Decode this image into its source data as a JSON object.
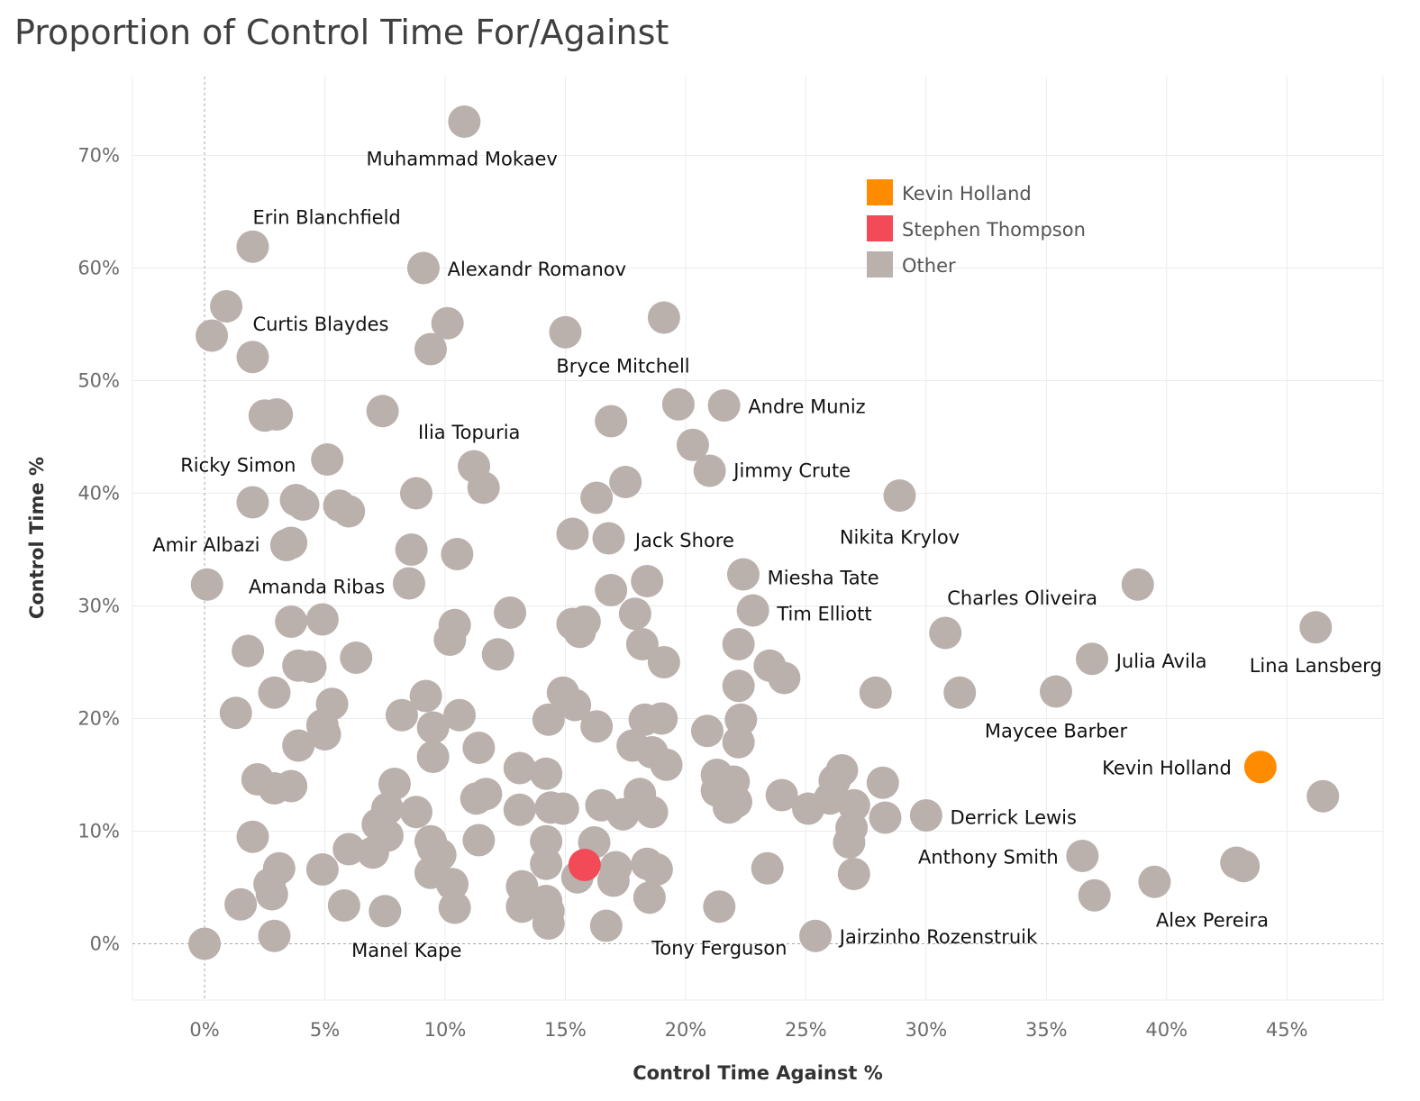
{
  "chart_data": {
    "type": "scatter",
    "title": "Proportion of Control Time For/Against",
    "xlabel": "Control Time Against %",
    "ylabel": "Control Time %",
    "xlim": [
      -3,
      49
    ],
    "ylim": [
      -5,
      77
    ],
    "x_ticks": [
      0,
      5,
      10,
      15,
      20,
      25,
      30,
      35,
      40,
      45
    ],
    "y_ticks": [
      0,
      10,
      20,
      30,
      40,
      50,
      60,
      70
    ],
    "tick_suffix": "%",
    "grid": true,
    "legend_position": "top-right",
    "colors": {
      "Kevin Holland": "#ff8c00",
      "Stephen Thompson": "#f24a57",
      "Other": "#bab0ac"
    },
    "series": [
      {
        "name": "Kevin Holland",
        "color": "#ff8c00",
        "points": [
          {
            "x": 43.9,
            "y": 15.7
          }
        ]
      },
      {
        "name": "Stephen Thompson",
        "color": "#f24a57",
        "points": [
          {
            "x": 15.8,
            "y": 7.0
          }
        ]
      },
      {
        "name": "Other",
        "color": "#bab0ac",
        "points": [
          {
            "x": 10.8,
            "y": 73.0
          },
          {
            "x": 2.0,
            "y": 61.9
          },
          {
            "x": 9.1,
            "y": 60.0
          },
          {
            "x": 0.9,
            "y": 56.6
          },
          {
            "x": 0.3,
            "y": 54.0
          },
          {
            "x": 2.0,
            "y": 52.1
          },
          {
            "x": 10.1,
            "y": 55.1
          },
          {
            "x": 9.4,
            "y": 52.8
          },
          {
            "x": 15.0,
            "y": 54.3
          },
          {
            "x": 19.1,
            "y": 55.6
          },
          {
            "x": 2.5,
            "y": 46.9
          },
          {
            "x": 3.0,
            "y": 47.0
          },
          {
            "x": 7.4,
            "y": 47.3
          },
          {
            "x": 19.7,
            "y": 47.9
          },
          {
            "x": 21.6,
            "y": 47.8
          },
          {
            "x": 16.9,
            "y": 46.4
          },
          {
            "x": 20.3,
            "y": 44.3
          },
          {
            "x": 21.0,
            "y": 42.0
          },
          {
            "x": 5.1,
            "y": 43.0
          },
          {
            "x": 11.2,
            "y": 42.4
          },
          {
            "x": 11.6,
            "y": 40.5
          },
          {
            "x": 8.8,
            "y": 40.0
          },
          {
            "x": 2.0,
            "y": 39.2
          },
          {
            "x": 3.8,
            "y": 39.4
          },
          {
            "x": 4.1,
            "y": 39.0
          },
          {
            "x": 5.6,
            "y": 38.9
          },
          {
            "x": 6.0,
            "y": 38.4
          },
          {
            "x": 16.3,
            "y": 39.6
          },
          {
            "x": 17.5,
            "y": 41.0
          },
          {
            "x": 28.9,
            "y": 39.8
          },
          {
            "x": 3.4,
            "y": 35.4
          },
          {
            "x": 3.6,
            "y": 35.6
          },
          {
            "x": 8.6,
            "y": 35.0
          },
          {
            "x": 10.5,
            "y": 34.6
          },
          {
            "x": 15.3,
            "y": 36.4
          },
          {
            "x": 16.8,
            "y": 36.0
          },
          {
            "x": 0.1,
            "y": 31.9
          },
          {
            "x": 8.5,
            "y": 32.0
          },
          {
            "x": 16.9,
            "y": 31.4
          },
          {
            "x": 18.4,
            "y": 32.2
          },
          {
            "x": 22.4,
            "y": 32.8
          },
          {
            "x": 38.8,
            "y": 31.9
          },
          {
            "x": 3.6,
            "y": 28.6
          },
          {
            "x": 4.9,
            "y": 28.8
          },
          {
            "x": 10.4,
            "y": 28.3
          },
          {
            "x": 12.7,
            "y": 29.4
          },
          {
            "x": 15.3,
            "y": 28.4
          },
          {
            "x": 15.8,
            "y": 28.6
          },
          {
            "x": 15.6,
            "y": 27.7
          },
          {
            "x": 17.9,
            "y": 29.3
          },
          {
            "x": 22.8,
            "y": 29.6
          },
          {
            "x": 46.2,
            "y": 28.1
          },
          {
            "x": 30.8,
            "y": 27.6
          },
          {
            "x": 1.8,
            "y": 26.0
          },
          {
            "x": 3.9,
            "y": 24.7
          },
          {
            "x": 4.4,
            "y": 24.6
          },
          {
            "x": 6.3,
            "y": 25.4
          },
          {
            "x": 10.2,
            "y": 27.0
          },
          {
            "x": 12.2,
            "y": 25.7
          },
          {
            "x": 18.2,
            "y": 26.6
          },
          {
            "x": 19.1,
            "y": 25.0
          },
          {
            "x": 22.2,
            "y": 26.6
          },
          {
            "x": 23.5,
            "y": 24.7
          },
          {
            "x": 24.1,
            "y": 23.6
          },
          {
            "x": 36.9,
            "y": 25.3
          },
          {
            "x": 2.9,
            "y": 22.3
          },
          {
            "x": 5.3,
            "y": 21.3
          },
          {
            "x": 9.2,
            "y": 22.0
          },
          {
            "x": 14.9,
            "y": 22.3
          },
          {
            "x": 15.4,
            "y": 21.2
          },
          {
            "x": 22.2,
            "y": 22.9
          },
          {
            "x": 27.9,
            "y": 22.3
          },
          {
            "x": 31.4,
            "y": 22.3
          },
          {
            "x": 35.4,
            "y": 22.4
          },
          {
            "x": 1.3,
            "y": 20.5
          },
          {
            "x": 4.9,
            "y": 19.4
          },
          {
            "x": 5.0,
            "y": 18.6
          },
          {
            "x": 8.2,
            "y": 20.3
          },
          {
            "x": 9.5,
            "y": 19.2
          },
          {
            "x": 10.6,
            "y": 20.3
          },
          {
            "x": 14.3,
            "y": 19.9
          },
          {
            "x": 16.3,
            "y": 19.3
          },
          {
            "x": 18.3,
            "y": 19.9
          },
          {
            "x": 19.0,
            "y": 20.0
          },
          {
            "x": 20.9,
            "y": 18.9
          },
          {
            "x": 22.3,
            "y": 19.9
          },
          {
            "x": 3.9,
            "y": 17.6
          },
          {
            "x": 9.5,
            "y": 16.6
          },
          {
            "x": 11.4,
            "y": 17.4
          },
          {
            "x": 17.8,
            "y": 17.6
          },
          {
            "x": 18.6,
            "y": 17.0
          },
          {
            "x": 19.2,
            "y": 15.9
          },
          {
            "x": 22.2,
            "y": 17.9
          },
          {
            "x": 2.2,
            "y": 14.6
          },
          {
            "x": 2.9,
            "y": 13.8
          },
          {
            "x": 3.6,
            "y": 14.0
          },
          {
            "x": 7.9,
            "y": 14.2
          },
          {
            "x": 13.1,
            "y": 15.6
          },
          {
            "x": 14.2,
            "y": 15.1
          },
          {
            "x": 21.3,
            "y": 15.0
          },
          {
            "x": 22.0,
            "y": 14.4
          },
          {
            "x": 26.2,
            "y": 14.5
          },
          {
            "x": 26.5,
            "y": 15.4
          },
          {
            "x": 28.2,
            "y": 14.3
          },
          {
            "x": 7.6,
            "y": 12.0
          },
          {
            "x": 8.8,
            "y": 11.7
          },
          {
            "x": 11.3,
            "y": 12.9
          },
          {
            "x": 11.7,
            "y": 13.3
          },
          {
            "x": 13.1,
            "y": 11.9
          },
          {
            "x": 14.4,
            "y": 12.1
          },
          {
            "x": 14.9,
            "y": 12.0
          },
          {
            "x": 16.5,
            "y": 12.3
          },
          {
            "x": 17.4,
            "y": 11.5
          },
          {
            "x": 18.1,
            "y": 13.3
          },
          {
            "x": 18.6,
            "y": 11.7
          },
          {
            "x": 21.3,
            "y": 13.6
          },
          {
            "x": 21.8,
            "y": 12.1
          },
          {
            "x": 22.1,
            "y": 12.6
          },
          {
            "x": 24.0,
            "y": 13.2
          },
          {
            "x": 25.1,
            "y": 12.0
          },
          {
            "x": 26.0,
            "y": 12.9
          },
          {
            "x": 27.0,
            "y": 12.3
          },
          {
            "x": 28.3,
            "y": 11.2
          },
          {
            "x": 30.0,
            "y": 11.4
          },
          {
            "x": 2.0,
            "y": 9.5
          },
          {
            "x": 7.2,
            "y": 10.6
          },
          {
            "x": 7.6,
            "y": 9.6
          },
          {
            "x": 9.4,
            "y": 9.1
          },
          {
            "x": 9.5,
            "y": 8.5
          },
          {
            "x": 9.8,
            "y": 7.9
          },
          {
            "x": 11.4,
            "y": 9.2
          },
          {
            "x": 14.2,
            "y": 9.1
          },
          {
            "x": 16.2,
            "y": 9.0
          },
          {
            "x": 26.9,
            "y": 10.3
          },
          {
            "x": 26.8,
            "y": 9.0
          },
          {
            "x": 36.5,
            "y": 7.8
          },
          {
            "x": 3.1,
            "y": 6.7
          },
          {
            "x": 4.9,
            "y": 6.6
          },
          {
            "x": 6.0,
            "y": 8.4
          },
          {
            "x": 7.0,
            "y": 8.1
          },
          {
            "x": 9.4,
            "y": 6.3
          },
          {
            "x": 10.3,
            "y": 5.3
          },
          {
            "x": 14.2,
            "y": 7.1
          },
          {
            "x": 15.5,
            "y": 5.9
          },
          {
            "x": 17.1,
            "y": 6.8
          },
          {
            "x": 17.0,
            "y": 5.6
          },
          {
            "x": 18.4,
            "y": 7.1
          },
          {
            "x": 18.8,
            "y": 6.6
          },
          {
            "x": 23.4,
            "y": 6.7
          },
          {
            "x": 27.0,
            "y": 6.2
          },
          {
            "x": 39.5,
            "y": 5.5
          },
          {
            "x": 42.9,
            "y": 7.2
          },
          {
            "x": 43.2,
            "y": 6.9
          },
          {
            "x": 1.5,
            "y": 3.5
          },
          {
            "x": 2.7,
            "y": 5.3
          },
          {
            "x": 2.8,
            "y": 4.4
          },
          {
            "x": 5.8,
            "y": 3.4
          },
          {
            "x": 7.5,
            "y": 2.9
          },
          {
            "x": 10.4,
            "y": 3.2
          },
          {
            "x": 13.2,
            "y": 5.1
          },
          {
            "x": 13.2,
            "y": 3.3
          },
          {
            "x": 14.2,
            "y": 3.8
          },
          {
            "x": 14.3,
            "y": 2.9
          },
          {
            "x": 14.3,
            "y": 1.8
          },
          {
            "x": 16.7,
            "y": 1.6
          },
          {
            "x": 18.5,
            "y": 4.1
          },
          {
            "x": 21.4,
            "y": 3.3
          },
          {
            "x": 37.0,
            "y": 4.3
          },
          {
            "x": 0.0,
            "y": 0.0
          },
          {
            "x": 2.9,
            "y": 0.7
          },
          {
            "x": 25.4,
            "y": 0.7
          },
          {
            "x": 46.5,
            "y": 13.1
          }
        ]
      }
    ],
    "annotations": [
      {
        "text": "Muhammad Mokaev",
        "x": 10.7,
        "y": 69.7,
        "anchor": "middle"
      },
      {
        "text": "Erin Blanchfield",
        "x": 2.0,
        "y": 64.5,
        "anchor": "start"
      },
      {
        "text": "Alexandr Romanov",
        "x": 10.1,
        "y": 59.9,
        "anchor": "start"
      },
      {
        "text": "Curtis Blaydes",
        "x": 2.0,
        "y": 55.0,
        "anchor": "start"
      },
      {
        "text": "Bryce Mitchell",
        "x": 17.4,
        "y": 51.3,
        "anchor": "middle"
      },
      {
        "text": "Andre Muniz",
        "x": 22.6,
        "y": 47.7,
        "anchor": "start"
      },
      {
        "text": "Ilia Topuria",
        "x": 11.0,
        "y": 45.4,
        "anchor": "middle"
      },
      {
        "text": "Jimmy Crute",
        "x": 22.0,
        "y": 42.0,
        "anchor": "start"
      },
      {
        "text": "Ricky Simon",
        "x": 3.8,
        "y": 42.5,
        "anchor": "end"
      },
      {
        "text": "Nikita Krylov",
        "x": 28.9,
        "y": 36.1,
        "anchor": "middle"
      },
      {
        "text": "Amir Albazi",
        "x": 2.3,
        "y": 35.4,
        "anchor": "end"
      },
      {
        "text": "Jack Shore",
        "x": 17.9,
        "y": 35.8,
        "anchor": "start"
      },
      {
        "text": "Miesha Tate",
        "x": 23.4,
        "y": 32.5,
        "anchor": "start"
      },
      {
        "text": "Amanda Ribas",
        "x": 7.5,
        "y": 31.7,
        "anchor": "end"
      },
      {
        "text": "Charles Oliveira",
        "x": 34.0,
        "y": 30.7,
        "anchor": "middle"
      },
      {
        "text": "Tim Elliott",
        "x": 23.8,
        "y": 29.3,
        "anchor": "start"
      },
      {
        "text": "Julia Avila",
        "x": 37.9,
        "y": 25.1,
        "anchor": "start"
      },
      {
        "text": "Lina Lansberg",
        "x": 46.2,
        "y": 24.7,
        "anchor": "middle"
      },
      {
        "text": "Maycee Barber",
        "x": 35.4,
        "y": 18.9,
        "anchor": "middle"
      },
      {
        "text": "Kevin Holland",
        "x": 42.7,
        "y": 15.6,
        "anchor": "end"
      },
      {
        "text": "Derrick Lewis",
        "x": 31.0,
        "y": 11.2,
        "anchor": "start"
      },
      {
        "text": "Anthony Smith",
        "x": 35.5,
        "y": 7.7,
        "anchor": "end"
      },
      {
        "text": "Alex Pereira",
        "x": 41.9,
        "y": 2.1,
        "anchor": "middle"
      },
      {
        "text": "Jairzinho Rozenstruik",
        "x": 26.4,
        "y": 0.6,
        "anchor": "start"
      },
      {
        "text": "Tony Ferguson",
        "x": 21.4,
        "y": -0.4,
        "anchor": "middle"
      },
      {
        "text": "Manel Kape",
        "x": 8.4,
        "y": -0.6,
        "anchor": "middle"
      }
    ],
    "legend": [
      {
        "label": "Kevin Holland",
        "color": "#ff8c00"
      },
      {
        "label": "Stephen Thompson",
        "color": "#f24a57"
      },
      {
        "label": "Other",
        "color": "#bab0ac"
      }
    ]
  }
}
